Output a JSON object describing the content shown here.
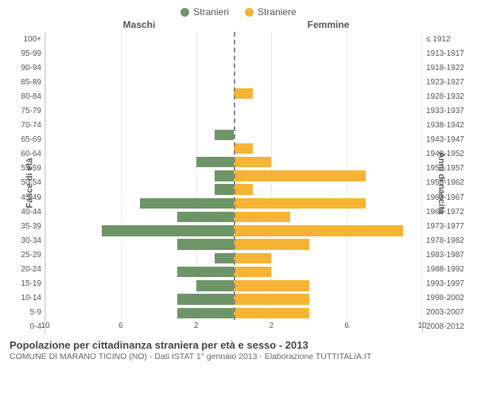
{
  "legend": {
    "male": "Stranieri",
    "female": "Straniere"
  },
  "headers": {
    "male": "Maschi",
    "female": "Femmine"
  },
  "axis": {
    "left_label": "Fasce di età",
    "right_label": "Anni di nascita"
  },
  "colors": {
    "male": "#6d9568",
    "female": "#f5b433",
    "grid": "#eaeaea",
    "center": "#888888",
    "background": "#ffffff",
    "text": "#555555"
  },
  "chart": {
    "type": "population-pyramid",
    "x_max": 10,
    "x_ticks": [
      10,
      6,
      2,
      2,
      6,
      10
    ],
    "x_tick_positions_pct": [
      0,
      20,
      40,
      60,
      80,
      100
    ],
    "grid_positions_pct": [
      0,
      20,
      40,
      60,
      80,
      100
    ],
    "rows": [
      {
        "age": "100+",
        "year": "≤ 1912",
        "m": 0,
        "f": 0
      },
      {
        "age": "95-99",
        "year": "1913-1917",
        "m": 0,
        "f": 0
      },
      {
        "age": "90-94",
        "year": "1918-1922",
        "m": 0,
        "f": 0
      },
      {
        "age": "85-89",
        "year": "1923-1927",
        "m": 0,
        "f": 0
      },
      {
        "age": "80-84",
        "year": "1928-1932",
        "m": 0,
        "f": 1
      },
      {
        "age": "75-79",
        "year": "1933-1937",
        "m": 0,
        "f": 0
      },
      {
        "age": "70-74",
        "year": "1938-1942",
        "m": 0,
        "f": 0
      },
      {
        "age": "65-69",
        "year": "1943-1947",
        "m": 1,
        "f": 0
      },
      {
        "age": "60-64",
        "year": "1948-1952",
        "m": 0,
        "f": 1
      },
      {
        "age": "55-59",
        "year": "1953-1957",
        "m": 2,
        "f": 2
      },
      {
        "age": "50-54",
        "year": "1958-1962",
        "m": 1,
        "f": 7
      },
      {
        "age": "45-49",
        "year": "1963-1967",
        "m": 1,
        "f": 1
      },
      {
        "age": "40-44",
        "year": "1968-1972",
        "m": 5,
        "f": 7
      },
      {
        "age": "35-39",
        "year": "1973-1977",
        "m": 3,
        "f": 3
      },
      {
        "age": "30-34",
        "year": "1978-1982",
        "m": 7,
        "f": 9
      },
      {
        "age": "25-29",
        "year": "1983-1987",
        "m": 3,
        "f": 4
      },
      {
        "age": "20-24",
        "year": "1988-1992",
        "m": 1,
        "f": 2
      },
      {
        "age": "15-19",
        "year": "1993-1997",
        "m": 3,
        "f": 2
      },
      {
        "age": "10-14",
        "year": "1998-2002",
        "m": 2,
        "f": 4
      },
      {
        "age": "5-9",
        "year": "2003-2007",
        "m": 3,
        "f": 4
      },
      {
        "age": "0-4",
        "year": "2008-2012",
        "m": 3,
        "f": 4
      }
    ]
  },
  "title": "Popolazione per cittadinanza straniera per età e sesso - 2013",
  "subtitle": "COMUNE DI MARANO TICINO (NO) - Dati ISTAT 1° gennaio 2013 - Elaborazione TUTTITALIA.IT"
}
